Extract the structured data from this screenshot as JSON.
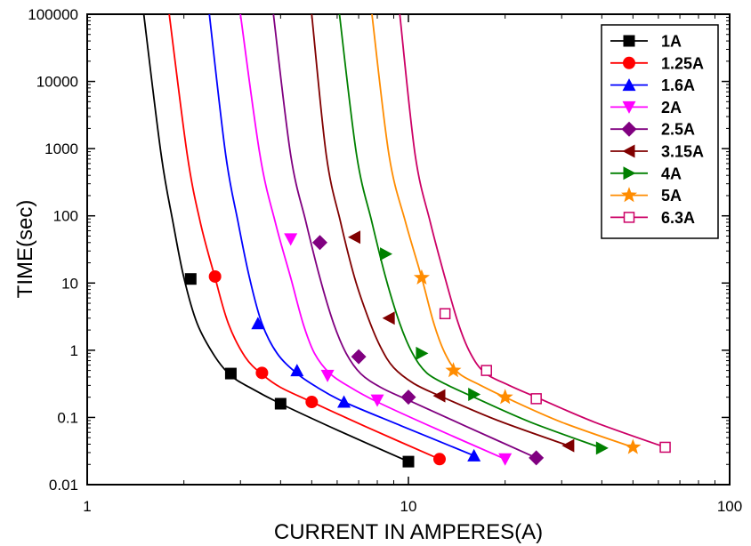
{
  "chart_data": {
    "type": "line",
    "title": "",
    "xlabel": "CURRENT IN AMPERES(A)",
    "ylabel": "TIME(sec)",
    "x_scale": "log",
    "y_scale": "log",
    "xlim": [
      1,
      100
    ],
    "ylim": [
      0.01,
      100000
    ],
    "x_ticks": [
      "1",
      "10",
      "100"
    ],
    "y_ticks": [
      "0.01",
      "0.1",
      "1",
      "10",
      "100",
      "1000",
      "10000",
      "100000"
    ],
    "grid": false,
    "legend_position": "top-right",
    "series": [
      {
        "name": "1A",
        "color": "#000000",
        "marker": "square-filled",
        "points": [
          [
            2.1,
            11.5
          ],
          [
            2.8,
            0.45
          ],
          [
            4.0,
            0.16
          ],
          [
            10.0,
            0.022
          ]
        ],
        "curve": [
          [
            1.5,
            100000
          ],
          [
            1.7,
            800
          ],
          [
            1.85,
            80
          ],
          [
            2.0,
            12
          ],
          [
            2.2,
            2.5
          ],
          [
            2.5,
            0.8
          ],
          [
            2.8,
            0.42
          ],
          [
            3.2,
            0.28
          ],
          [
            4.0,
            0.16
          ],
          [
            6.0,
            0.065
          ],
          [
            10.0,
            0.022
          ]
        ]
      },
      {
        "name": "1.25A",
        "color": "#ff0000",
        "marker": "circle-filled",
        "points": [
          [
            2.5,
            12.5
          ],
          [
            3.5,
            0.46
          ],
          [
            5.0,
            0.17
          ],
          [
            12.5,
            0.024
          ]
        ],
        "curve": [
          [
            1.8,
            100000
          ],
          [
            2.05,
            800
          ],
          [
            2.25,
            80
          ],
          [
            2.5,
            12
          ],
          [
            2.75,
            2.5
          ],
          [
            3.1,
            0.8
          ],
          [
            3.5,
            0.44
          ],
          [
            4.0,
            0.28
          ],
          [
            5.0,
            0.17
          ],
          [
            7.5,
            0.07
          ],
          [
            12.5,
            0.024
          ]
        ]
      },
      {
        "name": "1.6A",
        "color": "#0000ff",
        "marker": "triangle-up",
        "points": [
          [
            3.4,
            2.5
          ],
          [
            4.5,
            0.5
          ],
          [
            6.3,
            0.17
          ],
          [
            16.0,
            0.027
          ]
        ],
        "curve": [
          [
            2.4,
            100000
          ],
          [
            2.7,
            800
          ],
          [
            2.95,
            80
          ],
          [
            3.2,
            12
          ],
          [
            3.5,
            2.5
          ],
          [
            3.9,
            0.9
          ],
          [
            4.5,
            0.45
          ],
          [
            5.2,
            0.28
          ],
          [
            6.3,
            0.17
          ],
          [
            9.5,
            0.075
          ],
          [
            16.0,
            0.027
          ]
        ]
      },
      {
        "name": "2A",
        "color": "#ff00ff",
        "marker": "triangle-down",
        "points": [
          [
            4.3,
            45
          ],
          [
            5.6,
            0.42
          ],
          [
            8.0,
            0.18
          ],
          [
            20.0,
            0.024
          ]
        ],
        "curve": [
          [
            3.0,
            100000
          ],
          [
            3.45,
            800
          ],
          [
            3.85,
            80
          ],
          [
            4.3,
            12
          ],
          [
            4.7,
            2.5
          ],
          [
            5.1,
            0.9
          ],
          [
            5.7,
            0.45
          ],
          [
            6.6,
            0.28
          ],
          [
            8.0,
            0.17
          ],
          [
            12.0,
            0.07
          ],
          [
            20.0,
            0.024
          ]
        ]
      },
      {
        "name": "2.5A",
        "color": "#800080",
        "marker": "diamond",
        "points": [
          [
            5.3,
            40
          ],
          [
            7.0,
            0.8
          ],
          [
            10.0,
            0.2
          ],
          [
            25.0,
            0.025
          ]
        ],
        "curve": [
          [
            3.8,
            100000
          ],
          [
            4.3,
            800
          ],
          [
            4.8,
            80
          ],
          [
            5.3,
            12
          ],
          [
            5.85,
            2.5
          ],
          [
            6.4,
            0.9
          ],
          [
            7.1,
            0.45
          ],
          [
            8.2,
            0.28
          ],
          [
            10.0,
            0.18
          ],
          [
            15.0,
            0.075
          ],
          [
            25.0,
            0.025
          ]
        ]
      },
      {
        "name": "3.15A",
        "color": "#800000",
        "marker": "triangle-left",
        "points": [
          [
            6.8,
            48
          ],
          [
            8.7,
            3.0
          ],
          [
            12.5,
            0.21
          ],
          [
            31.5,
            0.038
          ]
        ],
        "curve": [
          [
            5.0,
            100000
          ],
          [
            5.55,
            800
          ],
          [
            6.15,
            80
          ],
          [
            6.8,
            12
          ],
          [
            7.5,
            3
          ],
          [
            8.2,
            1.1
          ],
          [
            9.0,
            0.55
          ],
          [
            10.4,
            0.32
          ],
          [
            12.5,
            0.21
          ],
          [
            19.0,
            0.09
          ],
          [
            31.5,
            0.038
          ]
        ]
      },
      {
        "name": "4A",
        "color": "#008000",
        "marker": "triangle-right",
        "points": [
          [
            8.5,
            27
          ],
          [
            11.0,
            0.9
          ],
          [
            16.0,
            0.22
          ],
          [
            40.0,
            0.035
          ]
        ],
        "curve": [
          [
            6.1,
            100000
          ],
          [
            6.9,
            800
          ],
          [
            7.7,
            80
          ],
          [
            8.5,
            12
          ],
          [
            9.4,
            2.5
          ],
          [
            10.3,
            0.9
          ],
          [
            11.4,
            0.46
          ],
          [
            13.3,
            0.3
          ],
          [
            16.0,
            0.2
          ],
          [
            24.0,
            0.085
          ],
          [
            40.0,
            0.035
          ]
        ]
      },
      {
        "name": "5A",
        "color": "#ff8c00",
        "marker": "star",
        "points": [
          [
            11.0,
            12
          ],
          [
            13.8,
            0.5
          ],
          [
            20.0,
            0.2
          ],
          [
            50.0,
            0.036
          ]
        ],
        "curve": [
          [
            7.7,
            100000
          ],
          [
            8.7,
            800
          ],
          [
            9.8,
            80
          ],
          [
            11.0,
            12
          ],
          [
            12.0,
            2.5
          ],
          [
            13.0,
            0.9
          ],
          [
            14.3,
            0.46
          ],
          [
            16.8,
            0.3
          ],
          [
            20.0,
            0.2
          ],
          [
            30.0,
            0.085
          ],
          [
            50.0,
            0.036
          ]
        ]
      },
      {
        "name": "6.3A",
        "color": "#cc0066",
        "marker": "square-open",
        "points": [
          [
            13.0,
            3.5
          ],
          [
            17.5,
            0.5
          ],
          [
            25.0,
            0.19
          ],
          [
            63.0,
            0.036
          ]
        ],
        "curve": [
          [
            9.4,
            100000
          ],
          [
            10.5,
            800
          ],
          [
            11.7,
            80
          ],
          [
            13.0,
            12
          ],
          [
            14.3,
            2.5
          ],
          [
            15.6,
            0.9
          ],
          [
            17.3,
            0.46
          ],
          [
            20.6,
            0.3
          ],
          [
            25.0,
            0.2
          ],
          [
            38.0,
            0.085
          ],
          [
            63.0,
            0.036
          ]
        ]
      }
    ]
  }
}
